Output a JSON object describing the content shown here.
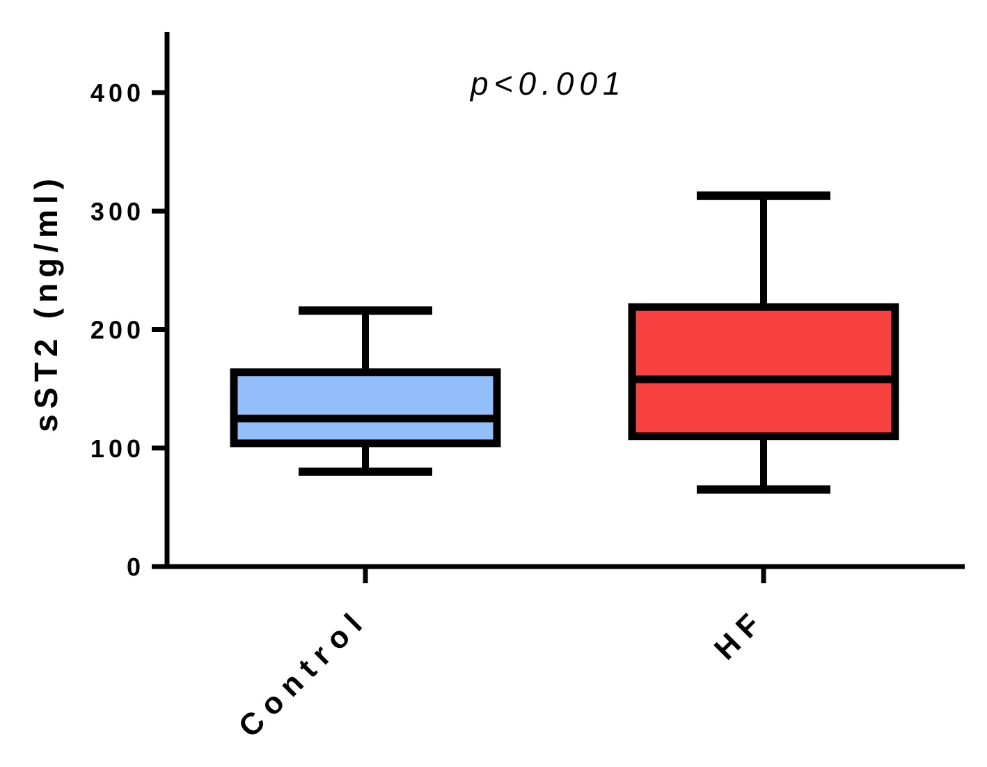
{
  "chart_data": {
    "type": "box",
    "ylabel": "sST2 (ng/ml)",
    "ylim": [
      0,
      450
    ],
    "yticks": [
      0,
      100,
      200,
      300,
      400
    ],
    "categories": [
      "Control",
      "HF"
    ],
    "boxes": [
      {
        "category": "Control",
        "whisker_low": 80,
        "q1": 104,
        "median": 125,
        "q3": 164,
        "whisker_high": 216,
        "color": "#92bff9"
      },
      {
        "category": "HF",
        "whisker_low": 65,
        "q1": 110,
        "median": 158,
        "q3": 219,
        "whisker_high": 313,
        "color": "#f84242"
      }
    ],
    "annotation": "p<0.001",
    "grid": false
  }
}
